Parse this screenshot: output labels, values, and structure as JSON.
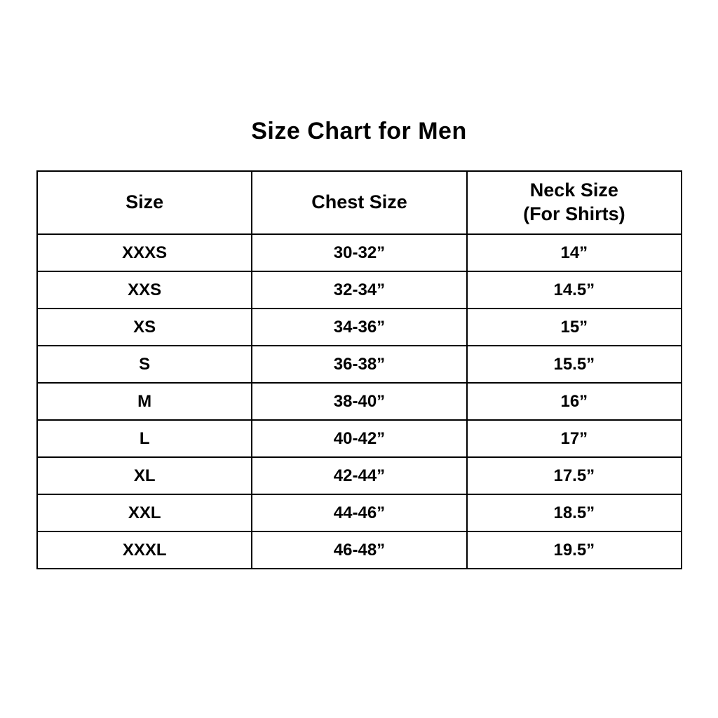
{
  "page": {
    "title": "Size Chart for Men"
  },
  "table": {
    "headers": {
      "size": "Size",
      "chest": "Chest Size",
      "neck_line1": "Neck Size",
      "neck_line2": "(For Shirts)"
    },
    "rows": [
      {
        "size": "XXXS",
        "chest": "30-32”",
        "neck": "14”"
      },
      {
        "size": "XXS",
        "chest": "32-34”",
        "neck": "14.5”"
      },
      {
        "size": "XS",
        "chest": "34-36”",
        "neck": "15”"
      },
      {
        "size": "S",
        "chest": "36-38”",
        "neck": "15.5”"
      },
      {
        "size": "M",
        "chest": "38-40”",
        "neck": "16”"
      },
      {
        "size": "L",
        "chest": "40-42”",
        "neck": "17”"
      },
      {
        "size": "XL",
        "chest": "42-44”",
        "neck": "17.5”"
      },
      {
        "size": "XXL",
        "chest": "44-46”",
        "neck": "18.5”"
      },
      {
        "size": "XXXL",
        "chest": "46-48”",
        "neck": "19.5”"
      }
    ]
  },
  "colors": {
    "background": "#ffffff",
    "text": "#000000",
    "border": "#000000"
  },
  "chart_data": {
    "type": "table",
    "title": "Size Chart for Men",
    "columns": [
      "Size",
      "Chest Size",
      "Neck Size (For Shirts)"
    ],
    "rows": [
      [
        "XXXS",
        "30-32”",
        "14”"
      ],
      [
        "XXS",
        "32-34”",
        "14.5”"
      ],
      [
        "XS",
        "34-36”",
        "15”"
      ],
      [
        "S",
        "36-38”",
        "15.5”"
      ],
      [
        "M",
        "38-40”",
        "16”"
      ],
      [
        "L",
        "40-42”",
        "17”"
      ],
      [
        "XL",
        "42-44”",
        "17.5”"
      ],
      [
        "XXL",
        "44-46”",
        "18.5”"
      ],
      [
        "XXXL",
        "46-48”",
        "19.5”"
      ]
    ]
  }
}
